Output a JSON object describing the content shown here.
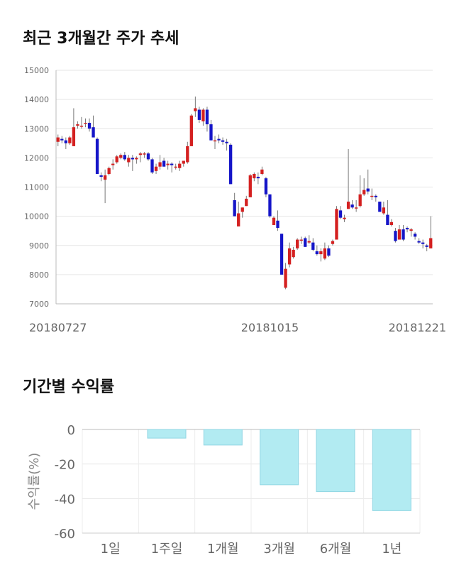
{
  "sections": {
    "price_title": "최근 3개월간 주가 추세",
    "returns_title": "기간별 수익률"
  },
  "colors": {
    "up": "#d42020",
    "down": "#1515c8",
    "bar_fill": "#b2ebf2",
    "bar_stroke": "#90d6e3"
  },
  "chart_data": [
    {
      "type": "candlestick",
      "title": "최근 3개월간 주가 추세",
      "ylim": [
        7000,
        15000
      ],
      "yticks": [
        "7000",
        "8000",
        "9000",
        "10000",
        "11000",
        "12000",
        "13000",
        "14000",
        "15000"
      ],
      "xticks": [
        "20180727",
        "20181015",
        "20181221"
      ],
      "grid": true,
      "ohlc": [
        [
          12550,
          12800,
          12400,
          12700
        ],
        [
          12650,
          12750,
          12500,
          12600
        ],
        [
          12600,
          12700,
          12300,
          12500
        ],
        [
          12500,
          12750,
          12450,
          12700
        ],
        [
          12400,
          13700,
          12400,
          13050
        ],
        [
          13100,
          13250,
          13000,
          13150
        ],
        [
          13100,
          13400,
          13000,
          13100
        ],
        [
          13200,
          13350,
          13050,
          13200
        ],
        [
          13200,
          13350,
          12900,
          13000
        ],
        [
          13050,
          13450,
          12750,
          12700
        ],
        [
          12650,
          12700,
          11450,
          11450
        ],
        [
          11400,
          11500,
          11200,
          11350
        ],
        [
          11250,
          11600,
          10450,
          11400
        ],
        [
          11450,
          11700,
          11400,
          11650
        ],
        [
          11750,
          11950,
          11600,
          11800
        ],
        [
          11850,
          12100,
          11800,
          12050
        ],
        [
          12000,
          12150,
          11950,
          12100
        ],
        [
          12100,
          12200,
          11900,
          11950
        ],
        [
          11850,
          12100,
          11700,
          12000
        ],
        [
          12000,
          12100,
          11550,
          11950
        ],
        [
          11950,
          12050,
          11800,
          12000
        ],
        [
          12100,
          12200,
          11850,
          12150
        ],
        [
          12150,
          12200,
          12000,
          12150
        ],
        [
          12150,
          12200,
          11900,
          11950
        ],
        [
          11950,
          12000,
          11450,
          11500
        ],
        [
          11550,
          11800,
          11450,
          11700
        ],
        [
          11700,
          12100,
          11600,
          11850
        ],
        [
          11900,
          12000,
          11700,
          11700
        ],
        [
          11750,
          11900,
          11600,
          11800
        ],
        [
          11800,
          11850,
          11500,
          11750
        ],
        [
          11700,
          11800,
          11600,
          11700
        ],
        [
          11650,
          11900,
          11550,
          11800
        ],
        [
          11800,
          11900,
          11700,
          11900
        ],
        [
          11850,
          12550,
          11800,
          12400
        ],
        [
          12400,
          13500,
          12400,
          13450
        ],
        [
          13600,
          14100,
          13400,
          13700
        ],
        [
          13650,
          13750,
          13200,
          13300
        ],
        [
          13250,
          13700,
          13100,
          13650
        ],
        [
          13650,
          13750,
          12900,
          13150
        ],
        [
          13150,
          13300,
          12600,
          12600
        ],
        [
          12600,
          12750,
          12300,
          12600
        ],
        [
          12650,
          12800,
          12500,
          12600
        ],
        [
          12600,
          12700,
          12450,
          12550
        ],
        [
          12550,
          12650,
          12250,
          12500
        ],
        [
          12450,
          12500,
          11100,
          11100
        ],
        [
          10550,
          10800,
          10000,
          10000
        ],
        [
          9650,
          10500,
          9650,
          10100
        ],
        [
          10150,
          10300,
          9950,
          10300
        ],
        [
          10350,
          10700,
          10350,
          10600
        ],
        [
          10650,
          11450,
          10650,
          11400
        ],
        [
          11300,
          11500,
          11200,
          11450
        ],
        [
          11350,
          11500,
          11100,
          11300
        ],
        [
          11450,
          11700,
          11400,
          11600
        ],
        [
          11300,
          11350,
          10650,
          10750
        ],
        [
          10750,
          10750,
          9950,
          10000
        ],
        [
          9700,
          10000,
          9700,
          9950
        ],
        [
          9850,
          10200,
          9500,
          9600
        ],
        [
          9400,
          9400,
          8000,
          8000
        ],
        [
          7550,
          8400,
          7500,
          8200
        ],
        [
          8350,
          9100,
          8250,
          8900
        ],
        [
          8600,
          8950,
          8550,
          8850
        ],
        [
          8900,
          9250,
          8850,
          9200
        ],
        [
          9200,
          9300,
          9050,
          9200
        ],
        [
          9250,
          9300,
          8950,
          8950
        ],
        [
          9100,
          9350,
          9050,
          9150
        ],
        [
          9100,
          9250,
          8800,
          8850
        ],
        [
          8800,
          9000,
          8650,
          8700
        ],
        [
          8700,
          8900,
          8450,
          8800
        ],
        [
          8550,
          9100,
          8500,
          8900
        ],
        [
          8900,
          9000,
          8600,
          8650
        ],
        [
          9050,
          9200,
          9000,
          9150
        ],
        [
          9200,
          10350,
          9200,
          10250
        ],
        [
          10200,
          10350,
          9900,
          9950
        ],
        [
          9900,
          10050,
          9800,
          9950
        ],
        [
          10250,
          12300,
          10250,
          10500
        ],
        [
          10400,
          10550,
          10250,
          10300
        ],
        [
          10300,
          10550,
          10150,
          10300
        ],
        [
          10350,
          11400,
          10300,
          10750
        ],
        [
          10750,
          11300,
          10700,
          10900
        ],
        [
          10950,
          11600,
          10750,
          10850
        ],
        [
          10700,
          10950,
          10550,
          10700
        ],
        [
          10700,
          10750,
          10500,
          10650
        ],
        [
          10500,
          10500,
          10150,
          10150
        ],
        [
          10100,
          10500,
          10050,
          10300
        ],
        [
          10050,
          10550,
          9700,
          9700
        ],
        [
          9700,
          9900,
          9650,
          9800
        ],
        [
          9500,
          9600,
          9100,
          9150
        ],
        [
          9200,
          9700,
          9200,
          9550
        ],
        [
          9550,
          9700,
          9150,
          9200
        ],
        [
          9600,
          9650,
          9450,
          9550
        ],
        [
          9500,
          9600,
          9300,
          9550
        ],
        [
          9400,
          9450,
          9200,
          9300
        ],
        [
          9150,
          9250,
          9050,
          9100
        ],
        [
          9100,
          9200,
          8900,
          9050
        ],
        [
          9000,
          9050,
          8800,
          8950
        ],
        [
          8900,
          10000,
          8900,
          9250
        ]
      ]
    },
    {
      "type": "bar",
      "title": "기간별 수익률",
      "ylabel": "수익률(%)",
      "categories": [
        "1일",
        "1주일",
        "1개월",
        "3개월",
        "6개월",
        "1년"
      ],
      "values": [
        0.0,
        -5.0,
        -9.0,
        -32.0,
        -36.0,
        -47.0
      ],
      "ylim": [
        -60,
        0
      ],
      "yticks": [
        "0",
        "-20",
        "-40",
        "-60"
      ],
      "grid": true
    }
  ]
}
